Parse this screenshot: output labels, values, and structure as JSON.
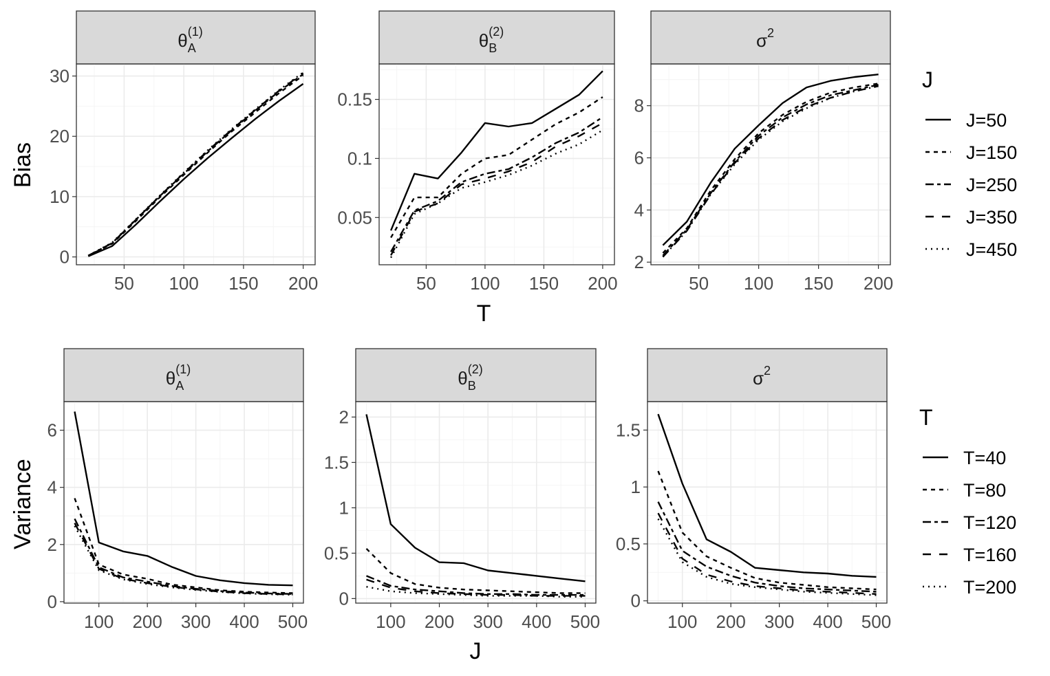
{
  "chart_data": [
    {
      "type": "line",
      "row": "top",
      "strip": {
        "sym": "θ",
        "sub": "A",
        "sup": "(1)"
      },
      "ylabel": "Bias",
      "xlabel": "T",
      "xlim": [
        10,
        210
      ],
      "ylim": [
        -1.3,
        32
      ],
      "xticks": [
        50,
        100,
        150,
        200
      ],
      "yticks": [
        0,
        10,
        20,
        30
      ],
      "x": [
        20,
        40,
        60,
        80,
        100,
        120,
        140,
        160,
        180,
        200
      ],
      "series": [
        {
          "name": "J=50",
          "values": [
            0.1,
            1.8,
            5.4,
            9.2,
            12.9,
            16.4,
            19.7,
            22.9,
            25.9,
            28.7
          ]
        },
        {
          "name": "J=150",
          "values": [
            0.2,
            2.2,
            6.0,
            9.9,
            13.6,
            17.3,
            20.8,
            24.0,
            27.2,
            30.1
          ]
        },
        {
          "name": "J=250",
          "values": [
            0.2,
            2.3,
            6.2,
            10.1,
            13.8,
            17.5,
            21.0,
            24.3,
            27.5,
            30.3
          ]
        },
        {
          "name": "J=350",
          "values": [
            0.2,
            2.3,
            6.2,
            10.1,
            13.9,
            17.6,
            21.1,
            24.4,
            27.6,
            30.5
          ]
        },
        {
          "name": "J=450",
          "values": [
            0.2,
            2.4,
            6.3,
            10.2,
            14.0,
            17.7,
            21.2,
            24.5,
            27.7,
            30.6
          ]
        }
      ]
    },
    {
      "type": "line",
      "row": "top",
      "strip": {
        "sym": "θ",
        "sub": "B",
        "sup": "(2)"
      },
      "ylabel": "",
      "xlabel": "T",
      "xlim": [
        10,
        210
      ],
      "ylim": [
        0.01,
        0.18
      ],
      "xticks": [
        50,
        100,
        150,
        200
      ],
      "yticks": [
        0.05,
        0.1,
        0.15
      ],
      "x": [
        20,
        40,
        60,
        80,
        100,
        120,
        140,
        160,
        180,
        200
      ],
      "series": [
        {
          "name": "J=50",
          "values": [
            0.039,
            0.087,
            0.083,
            0.105,
            0.13,
            0.127,
            0.13,
            0.142,
            0.154,
            0.174
          ]
        },
        {
          "name": "J=150",
          "values": [
            0.033,
            0.067,
            0.067,
            0.087,
            0.1,
            0.103,
            0.116,
            0.129,
            0.139,
            0.152
          ]
        },
        {
          "name": "J=250",
          "values": [
            0.021,
            0.056,
            0.064,
            0.08,
            0.087,
            0.091,
            0.101,
            0.113,
            0.122,
            0.135
          ]
        },
        {
          "name": "J=350",
          "values": [
            0.018,
            0.055,
            0.062,
            0.078,
            0.083,
            0.089,
            0.097,
            0.11,
            0.119,
            0.13
          ]
        },
        {
          "name": "J=450",
          "values": [
            0.016,
            0.053,
            0.062,
            0.075,
            0.08,
            0.086,
            0.094,
            0.104,
            0.112,
            0.124
          ]
        }
      ]
    },
    {
      "type": "line",
      "row": "top",
      "strip": {
        "sym": "σ",
        "sub": "",
        "sup": "2"
      },
      "ylabel": "",
      "xlabel": "T",
      "xlim": [
        10,
        210
      ],
      "ylim": [
        1.9,
        9.6
      ],
      "xticks": [
        50,
        100,
        150,
        200
      ],
      "yticks": [
        2,
        4,
        6,
        8
      ],
      "x": [
        20,
        40,
        60,
        80,
        100,
        120,
        140,
        160,
        180,
        200
      ],
      "series": [
        {
          "name": "J=50",
          "values": [
            2.65,
            3.55,
            5.05,
            6.35,
            7.25,
            8.1,
            8.7,
            8.95,
            9.1,
            9.2
          ]
        },
        {
          "name": "J=150",
          "values": [
            2.35,
            3.3,
            4.75,
            5.95,
            6.95,
            7.65,
            8.15,
            8.5,
            8.7,
            8.85
          ]
        },
        {
          "name": "J=250",
          "values": [
            2.25,
            3.25,
            4.65,
            5.85,
            6.85,
            7.55,
            8.05,
            8.4,
            8.6,
            8.8
          ]
        },
        {
          "name": "J=350",
          "values": [
            2.2,
            3.2,
            4.6,
            5.8,
            6.75,
            7.45,
            7.95,
            8.3,
            8.55,
            8.75
          ]
        },
        {
          "name": "J=450",
          "values": [
            2.2,
            3.2,
            4.6,
            5.75,
            6.7,
            7.4,
            7.9,
            8.3,
            8.55,
            8.75
          ]
        }
      ]
    },
    {
      "type": "line",
      "row": "bottom",
      "strip": {
        "sym": "θ",
        "sub": "A",
        "sup": "(1)"
      },
      "ylabel": "Variance",
      "xlabel": "J",
      "xlim": [
        28,
        522
      ],
      "ylim": [
        -0.05,
        7.0
      ],
      "xticks": [
        100,
        200,
        300,
        400,
        500
      ],
      "yticks": [
        0,
        2,
        4,
        6
      ],
      "x": [
        50,
        100,
        150,
        200,
        250,
        300,
        350,
        400,
        450,
        500
      ],
      "series": [
        {
          "name": "T=40",
          "values": [
            6.65,
            2.07,
            1.76,
            1.6,
            1.22,
            0.9,
            0.75,
            0.65,
            0.59,
            0.57
          ]
        },
        {
          "name": "T=80",
          "values": [
            3.62,
            1.3,
            0.95,
            0.8,
            0.6,
            0.5,
            0.4,
            0.35,
            0.32,
            0.3
          ]
        },
        {
          "name": "T=120",
          "values": [
            2.9,
            1.2,
            0.85,
            0.7,
            0.55,
            0.45,
            0.37,
            0.32,
            0.29,
            0.27
          ]
        },
        {
          "name": "T=160",
          "values": [
            2.75,
            1.15,
            0.8,
            0.65,
            0.52,
            0.43,
            0.35,
            0.3,
            0.27,
            0.25
          ]
        },
        {
          "name": "T=200",
          "values": [
            2.65,
            1.1,
            0.78,
            0.62,
            0.5,
            0.41,
            0.34,
            0.29,
            0.26,
            0.24
          ]
        }
      ]
    },
    {
      "type": "line",
      "row": "bottom",
      "strip": {
        "sym": "θ",
        "sub": "B",
        "sup": "(2)"
      },
      "ylabel": "",
      "xlabel": "J",
      "xlim": [
        28,
        522
      ],
      "ylim": [
        -0.05,
        2.17
      ],
      "xticks": [
        100,
        200,
        300,
        400,
        500
      ],
      "yticks": [
        0.0,
        0.5,
        1.0,
        1.5,
        2.0
      ],
      "x": [
        50,
        100,
        150,
        200,
        250,
        300,
        350,
        400,
        450,
        500
      ],
      "series": [
        {
          "name": "T=40",
          "values": [
            2.03,
            0.82,
            0.56,
            0.4,
            0.39,
            0.31,
            0.28,
            0.25,
            0.22,
            0.19
          ]
        },
        {
          "name": "T=80",
          "values": [
            0.55,
            0.28,
            0.16,
            0.12,
            0.1,
            0.09,
            0.08,
            0.07,
            0.06,
            0.06
          ]
        },
        {
          "name": "T=120",
          "values": [
            0.25,
            0.14,
            0.1,
            0.08,
            0.06,
            0.05,
            0.05,
            0.04,
            0.04,
            0.04
          ]
        },
        {
          "name": "T=160",
          "values": [
            0.21,
            0.12,
            0.08,
            0.06,
            0.05,
            0.04,
            0.04,
            0.03,
            0.03,
            0.03
          ]
        },
        {
          "name": "T=200",
          "values": [
            0.13,
            0.08,
            0.06,
            0.05,
            0.04,
            0.03,
            0.03,
            0.03,
            0.02,
            0.02
          ]
        }
      ]
    },
    {
      "type": "line",
      "row": "bottom",
      "strip": {
        "sym": "σ",
        "sub": "",
        "sup": "2"
      },
      "ylabel": "",
      "xlabel": "J",
      "xlim": [
        28,
        522
      ],
      "ylim": [
        -0.02,
        1.75
      ],
      "xticks": [
        100,
        200,
        300,
        400,
        500
      ],
      "yticks": [
        0.0,
        0.5,
        1.0,
        1.5
      ],
      "x": [
        50,
        100,
        150,
        200,
        250,
        300,
        350,
        400,
        450,
        500
      ],
      "series": [
        {
          "name": "T=40",
          "values": [
            1.64,
            1.03,
            0.54,
            0.43,
            0.29,
            0.27,
            0.25,
            0.24,
            0.22,
            0.21
          ]
        },
        {
          "name": "T=80",
          "values": [
            1.14,
            0.6,
            0.39,
            0.29,
            0.2,
            0.16,
            0.14,
            0.12,
            0.11,
            0.1
          ]
        },
        {
          "name": "T=120",
          "values": [
            0.87,
            0.44,
            0.3,
            0.22,
            0.16,
            0.13,
            0.11,
            0.1,
            0.09,
            0.08
          ]
        },
        {
          "name": "T=160",
          "values": [
            0.77,
            0.37,
            0.23,
            0.17,
            0.13,
            0.11,
            0.09,
            0.08,
            0.07,
            0.06
          ]
        },
        {
          "name": "T=200",
          "values": [
            0.72,
            0.34,
            0.21,
            0.15,
            0.12,
            0.1,
            0.08,
            0.07,
            0.06,
            0.05
          ]
        }
      ]
    }
  ],
  "legends": {
    "top": {
      "title": "J",
      "entries": [
        "J=50",
        "J=150",
        "J=250",
        "J=350",
        "J=450"
      ]
    },
    "bottom": {
      "title": "T",
      "entries": [
        "T=40",
        "T=80",
        "T=120",
        "T=160",
        "T=200"
      ]
    }
  },
  "linetypes": [
    "",
    "6,6",
    "12,5,5,5",
    "12,12",
    "2,6"
  ],
  "row_labels": {
    "top": {
      "ylabel": "Bias",
      "xlabel": "T"
    },
    "bottom": {
      "ylabel": "Variance",
      "xlabel": "J"
    }
  }
}
